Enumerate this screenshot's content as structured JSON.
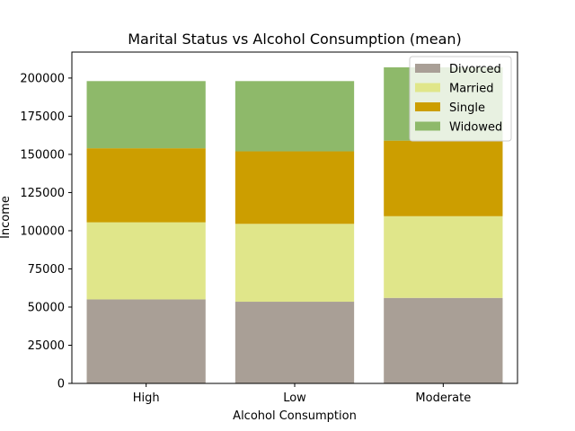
{
  "chart_data": {
    "type": "bar",
    "stacked": true,
    "title": "Marital Status vs Alcohol Consumption (mean)",
    "xlabel": "Alcohol Consumption",
    "ylabel": "Income",
    "categories": [
      "High",
      "Low",
      "Moderate"
    ],
    "ylim": [
      0,
      217000
    ],
    "yticks": [
      0,
      25000,
      50000,
      75000,
      100000,
      125000,
      150000,
      175000,
      200000
    ],
    "yticklabels": [
      "0",
      "25000",
      "50000",
      "75000",
      "100000",
      "125000",
      "150000",
      "175000",
      "200000"
    ],
    "grid": false,
    "legend_position": "top-right",
    "series": [
      {
        "name": "Divorced",
        "color": "#a99f96",
        "values": [
          55000,
          53500,
          56000
        ]
      },
      {
        "name": "Married",
        "color": "#e0e68a",
        "values": [
          50500,
          51000,
          53500
        ]
      },
      {
        "name": "Single",
        "color": "#cc9e00",
        "values": [
          48500,
          47500,
          49500
        ]
      },
      {
        "name": "Widowed",
        "color": "#8eb96a",
        "values": [
          44000,
          46000,
          48000
        ]
      }
    ]
  }
}
